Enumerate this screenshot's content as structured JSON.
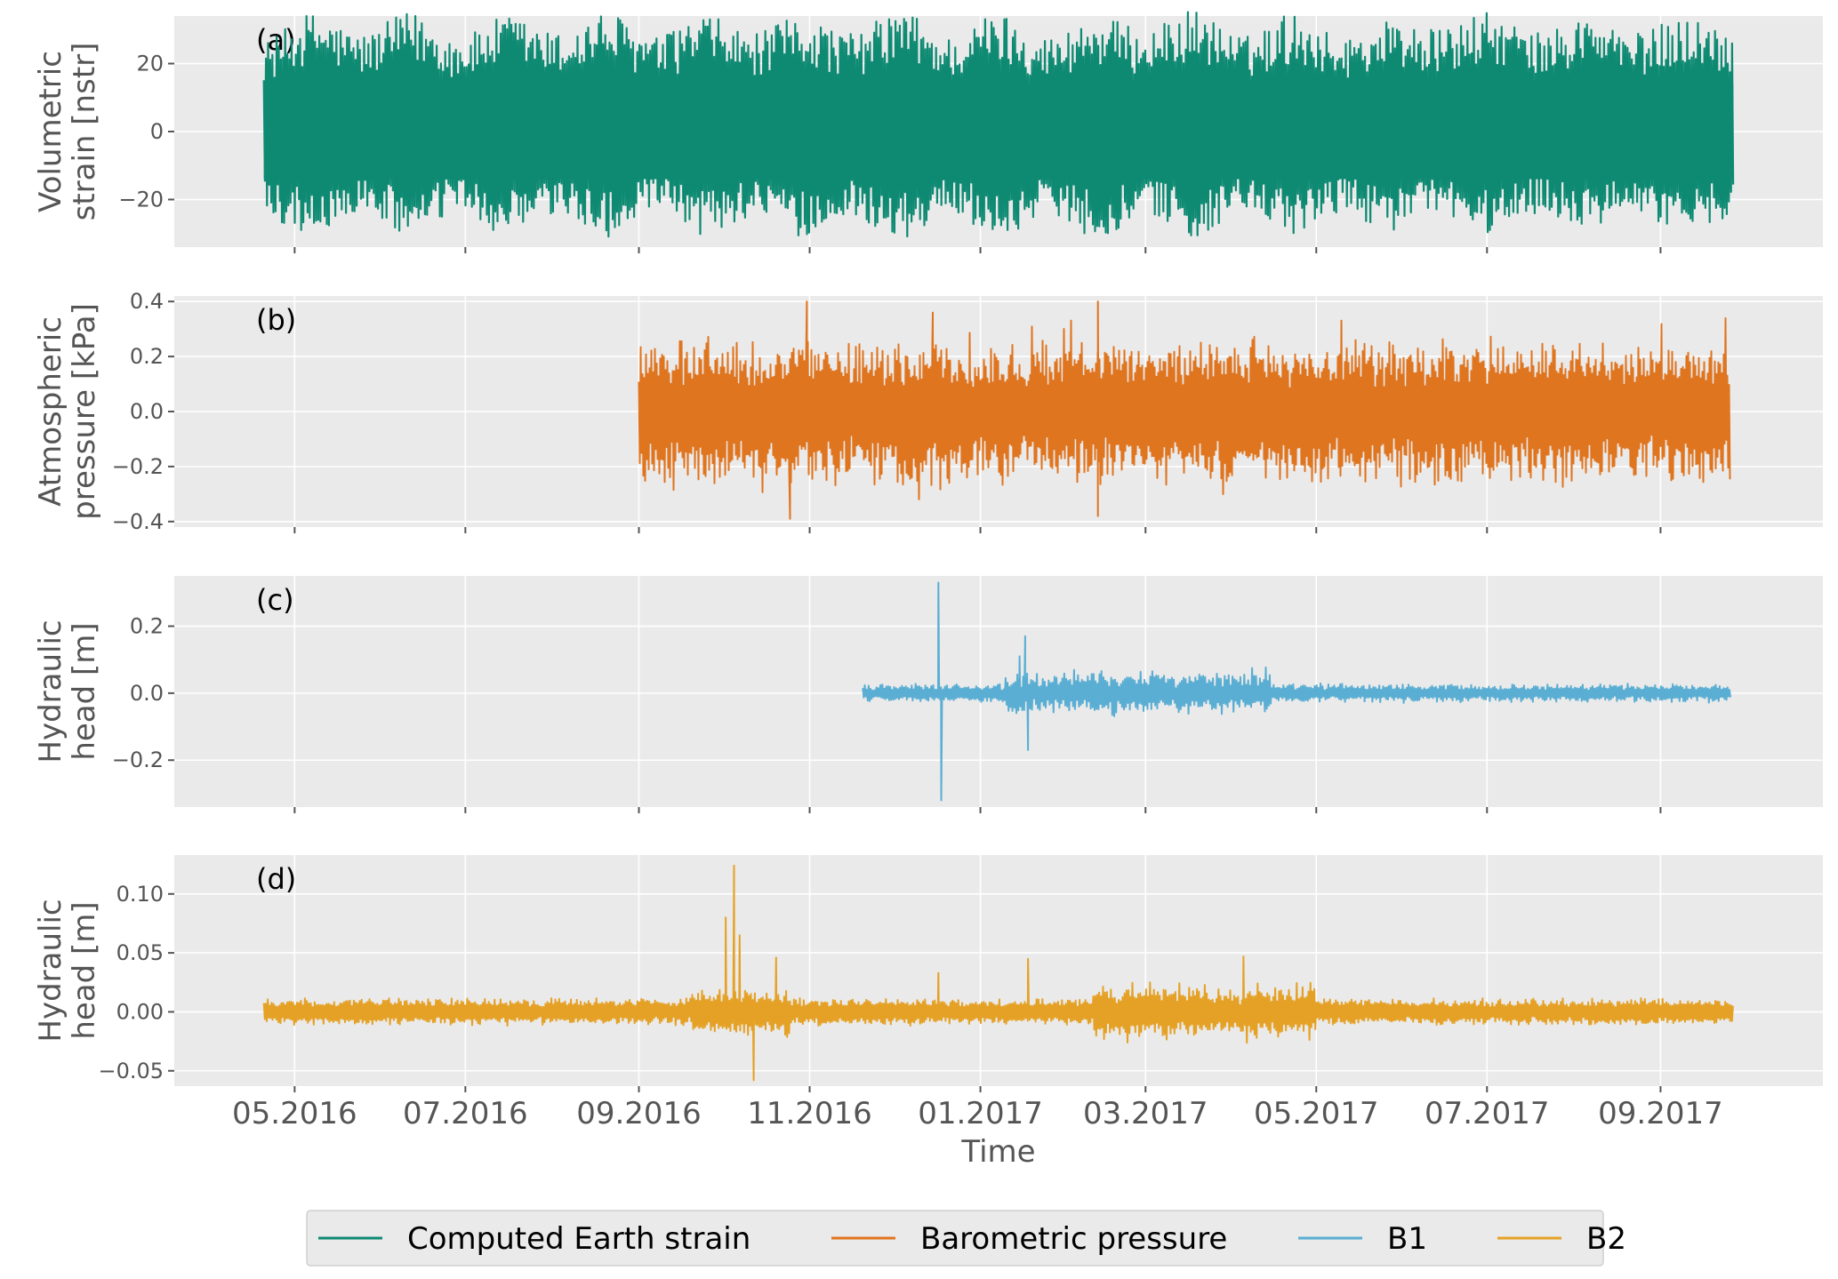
{
  "chart_data": [
    {
      "panel_label": "(a)",
      "type": "line",
      "ylabel": [
        "Volumetric",
        "strain [nstr]"
      ],
      "ylim": [
        -34,
        34
      ],
      "yticks": [
        -20,
        0,
        20
      ],
      "ytick_labels": [
        "−20",
        "0",
        "20"
      ],
      "series": [
        {
          "name": "Computed Earth strain",
          "color": "#0e8a73",
          "x_range": [
            "2016-04-20",
            "2017-09-27"
          ],
          "envelope_fortnightly_peaks": [
            27,
            35,
            29,
            35,
            28,
            34,
            29,
            35,
            28,
            34,
            29,
            34,
            29,
            36,
            28,
            35,
            28,
            34,
            30,
            36,
            28,
            35,
            28,
            33,
            30,
            35,
            29,
            34,
            29,
            34,
            30
          ],
          "envelope_fortnightly_troughs": [
            -26,
            -30,
            -24,
            -31,
            -24,
            -31,
            -25,
            -31,
            -24,
            -31,
            -25,
            -31,
            -25,
            -32,
            -24,
            -31,
            -24,
            -31,
            -25,
            -31,
            -24,
            -31,
            -24,
            -29,
            -25,
            -30,
            -24,
            -29,
            -24,
            -30,
            -25
          ]
        }
      ]
    },
    {
      "panel_label": "(b)",
      "type": "line",
      "ylabel": [
        "Atmospheric",
        "pressure [kPa]"
      ],
      "ylim": [
        -0.42,
        0.42
      ],
      "yticks": [
        -0.4,
        -0.2,
        0.0,
        0.2,
        0.4
      ],
      "ytick_labels": [
        "−0.4",
        "−0.2",
        "0.0",
        "0.2",
        "0.4"
      ],
      "series": [
        {
          "name": "Barometric pressure",
          "color": "#e07520",
          "x_range": [
            "2016-09-01",
            "2017-09-26"
          ],
          "typical_amplitude": 0.25,
          "extremes": [
            {
              "x": "2016-10-25",
              "y": -0.39
            },
            {
              "x": "2016-10-31",
              "y": 0.4
            },
            {
              "x": "2017-02-12",
              "y": 0.4
            },
            {
              "x": "2017-02-12",
              "y": -0.38
            },
            {
              "x": "2016-12-15",
              "y": 0.36
            }
          ]
        }
      ]
    },
    {
      "panel_label": "(c)",
      "type": "line",
      "ylabel": [
        "Hydraulic",
        "head [m]"
      ],
      "ylim": [
        -0.34,
        0.35
      ],
      "yticks": [
        -0.2,
        0.0,
        0.2
      ],
      "ytick_labels": [
        "−0.2",
        "0.0",
        "0.2"
      ],
      "series": [
        {
          "name": "B1",
          "color": "#5aaed3",
          "x_range": [
            "2016-11-20",
            "2017-09-26"
          ],
          "typical_amplitude": 0.03,
          "events": [
            {
              "x": "2016-12-17",
              "y": 0.33
            },
            {
              "x": "2016-12-18",
              "y": -0.32
            },
            {
              "x": "2017-01-17",
              "y": 0.17
            },
            {
              "x": "2017-01-18",
              "y": -0.17
            },
            {
              "x": "2017-01-15",
              "y": 0.11
            }
          ]
        }
      ]
    },
    {
      "panel_label": "(d)",
      "type": "line",
      "ylabel": [
        "Hydraulic",
        "head [m]"
      ],
      "ylim": [
        -0.063,
        0.133
      ],
      "yticks": [
        -0.05,
        0.0,
        0.05,
        0.1
      ],
      "ytick_labels": [
        "−0.05",
        "0.00",
        "0.05",
        "0.10"
      ],
      "series": [
        {
          "name": "B2",
          "color": "#e5a125",
          "x_range": [
            "2016-04-20",
            "2017-09-27"
          ],
          "typical_amplitude": 0.012,
          "events": [
            {
              "x": "2016-10-05",
              "y": 0.124
            },
            {
              "x": "2016-10-02",
              "y": 0.08
            },
            {
              "x": "2016-10-12",
              "y": -0.058
            },
            {
              "x": "2016-10-07",
              "y": 0.065
            },
            {
              "x": "2016-10-20",
              "y": 0.046
            },
            {
              "x": "2016-12-17",
              "y": 0.033
            },
            {
              "x": "2017-01-18",
              "y": 0.045
            },
            {
              "x": "2017-04-05",
              "y": 0.047
            }
          ]
        }
      ]
    }
  ],
  "x_axis": {
    "xlabel": "Time",
    "xlim": [
      "2016-03-19",
      "2017-10-29"
    ],
    "ticks": [
      "2016-05-01",
      "2016-07-01",
      "2016-09-01",
      "2016-11-01",
      "2017-01-01",
      "2017-03-01",
      "2017-05-01",
      "2017-07-01",
      "2017-09-01"
    ],
    "tick_labels": [
      "05.2016",
      "07.2016",
      "09.2016",
      "11.2016",
      "01.2017",
      "03.2017",
      "05.2017",
      "07.2017",
      "09.2017"
    ]
  },
  "legend": {
    "placement": "bottom-center",
    "entries": [
      {
        "label": "Computed Earth strain",
        "color": "#0e8a73"
      },
      {
        "label": "Barometric pressure",
        "color": "#e07520"
      },
      {
        "label": "B1",
        "color": "#5aaed3"
      },
      {
        "label": "B2",
        "color": "#e5a125"
      }
    ]
  },
  "style": {
    "panel_background": "#eaeaea",
    "grid": true,
    "grid_color": "#ffffff"
  }
}
